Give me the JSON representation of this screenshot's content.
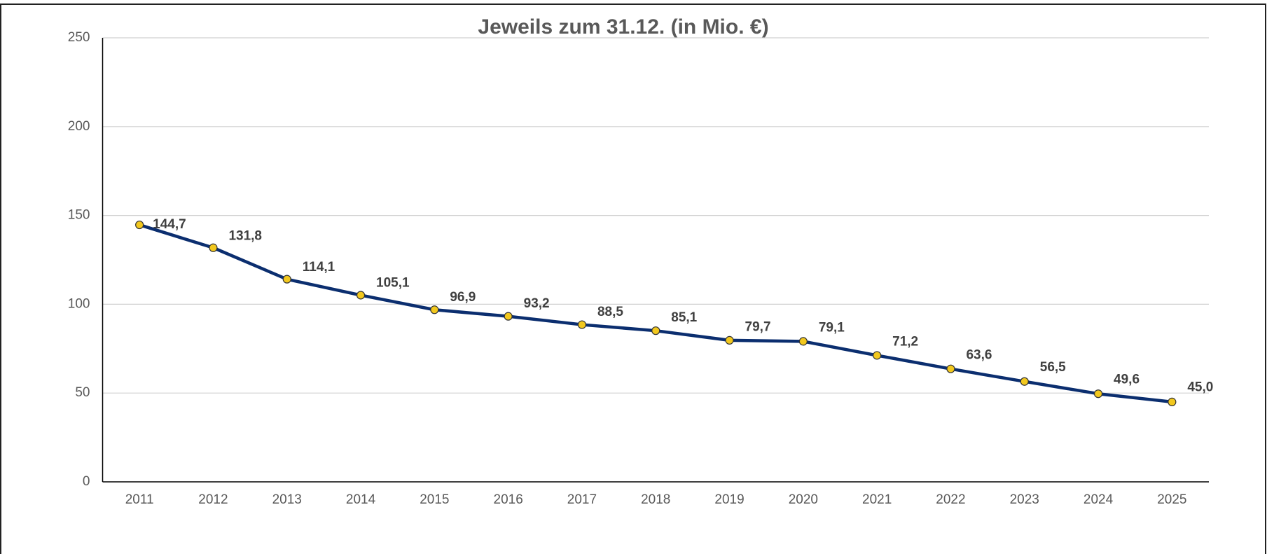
{
  "chart_data": {
    "type": "line",
    "title": "Jeweils zum 31.12. (in Mio. €)",
    "categories": [
      "2011",
      "2012",
      "2013",
      "2014",
      "2015",
      "2016",
      "2017",
      "2018",
      "2019",
      "2020",
      "2021",
      "2022",
      "2023",
      "2024",
      "2025"
    ],
    "series": [
      {
        "color": "#0b2e6f",
        "marker_color": "#f2c81e",
        "values": [
          144.7,
          131.8,
          114.1,
          105.1,
          96.9,
          93.2,
          88.5,
          85.1,
          79.7,
          79.1,
          71.2,
          63.6,
          56.5,
          49.6,
          45.0
        ],
        "value_labels": [
          "144,7",
          "131,8",
          "114,1",
          "105,1",
          "96,9",
          "93,2",
          "88,5",
          "85,1",
          "79,7",
          "79,1",
          "71,2",
          "63,6",
          "56,5",
          "49,6",
          "45,0"
        ]
      }
    ],
    "ylim": [
      0,
      250
    ],
    "yticks": [
      0,
      50,
      100,
      150,
      200,
      250
    ],
    "grid": true
  }
}
